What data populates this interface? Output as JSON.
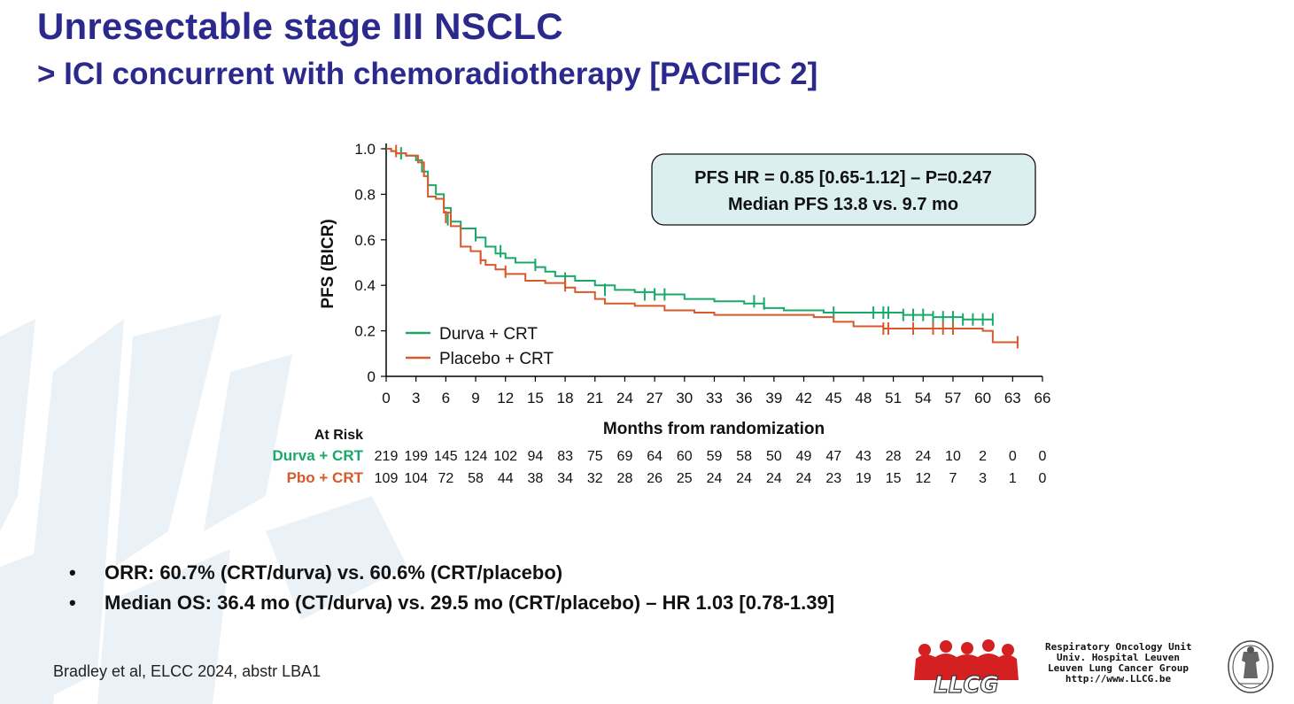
{
  "slide": {
    "title": "Unresectable stage III NSCLC",
    "subtitle": "> ICI concurrent with chemoradiotherapy [PACIFIC 2]"
  },
  "bullets": [
    "ORR: 60.7% (CRT/durva) vs. 60.6% (CRT/placebo)",
    "Median OS: 36.4 mo (CT/durva) vs. 29.5 mo (CRT/placebo) – HR 1.03 [0.78-1.39]"
  ],
  "bullet_symbol": "•",
  "citation": "Bradley et al, ELCC 2024, abstr LBA1",
  "footer": {
    "org_lines": [
      "Respiratory Oncology Unit",
      "Univ. Hospital Leuven",
      "Leuven Lung Cancer Group",
      "http://www.LLCG.be"
    ],
    "logo_text": "LLCG",
    "logo_icon": "llcg-logo",
    "seal_icon": "university-seal"
  },
  "colors": {
    "title": "#2b2a8c",
    "durva": "#1aa86a",
    "placebo": "#d65a2a",
    "annotation_bg": "#dbeff0"
  },
  "chart_data": {
    "type": "line",
    "title": "",
    "xlabel": "Months from randomization",
    "ylabel": "PFS (BICR)",
    "xlim": [
      0,
      66
    ],
    "ylim": [
      0,
      1.0
    ],
    "x_ticks": [
      0,
      3,
      6,
      9,
      12,
      15,
      18,
      21,
      24,
      27,
      30,
      33,
      36,
      39,
      42,
      45,
      48,
      51,
      54,
      57,
      60,
      63,
      66
    ],
    "y_ticks": [
      {
        "value": 0,
        "label": "0"
      },
      {
        "value": 0.2,
        "label": "0.2"
      },
      {
        "value": 0.4,
        "label": "0.4"
      },
      {
        "value": 0.6,
        "label": "0.6"
      },
      {
        "value": 0.8,
        "label": "0.8"
      },
      {
        "value": 1.0,
        "label": "1.0"
      }
    ],
    "annotation": [
      "PFS HR = 0.85 [0.65-1.12] – P=0.247",
      "Median PFS 13.8 vs. 9.7 mo"
    ],
    "legend_position": "bottom-left",
    "series": [
      {
        "name": "Durva + CRT",
        "color": "#1aa86a",
        "points": [
          [
            0,
            1.0
          ],
          [
            0.5,
            0.99
          ],
          [
            1,
            0.98
          ],
          [
            2,
            0.97
          ],
          [
            3,
            0.95
          ],
          [
            3.6,
            0.9
          ],
          [
            4.2,
            0.84
          ],
          [
            5,
            0.8
          ],
          [
            5.8,
            0.74
          ],
          [
            6.5,
            0.68
          ],
          [
            7.5,
            0.65
          ],
          [
            9,
            0.61
          ],
          [
            10,
            0.57
          ],
          [
            11,
            0.54
          ],
          [
            12,
            0.52
          ],
          [
            13,
            0.5
          ],
          [
            15,
            0.48
          ],
          [
            16,
            0.46
          ],
          [
            17,
            0.44
          ],
          [
            19,
            0.42
          ],
          [
            21,
            0.4
          ],
          [
            23,
            0.38
          ],
          [
            25,
            0.37
          ],
          [
            27,
            0.36
          ],
          [
            30,
            0.34
          ],
          [
            33,
            0.33
          ],
          [
            36,
            0.32
          ],
          [
            38,
            0.3
          ],
          [
            40,
            0.29
          ],
          [
            44,
            0.28
          ],
          [
            48,
            0.28
          ],
          [
            52,
            0.27
          ],
          [
            55,
            0.26
          ],
          [
            58,
            0.25
          ],
          [
            61,
            0.25
          ]
        ],
        "censor_marks": [
          [
            1.5,
            0.98
          ],
          [
            6.2,
            0.69
          ],
          [
            9,
            0.62
          ],
          [
            11.5,
            0.55
          ],
          [
            15,
            0.49
          ],
          [
            18,
            0.43
          ],
          [
            22,
            0.38
          ],
          [
            26,
            0.36
          ],
          [
            27,
            0.36
          ],
          [
            28,
            0.36
          ],
          [
            37,
            0.33
          ],
          [
            38,
            0.32
          ],
          [
            45,
            0.28
          ],
          [
            49,
            0.28
          ],
          [
            50,
            0.28
          ],
          [
            50.5,
            0.28
          ],
          [
            52,
            0.27
          ],
          [
            53,
            0.27
          ],
          [
            54,
            0.27
          ],
          [
            55,
            0.26
          ],
          [
            56,
            0.26
          ],
          [
            57,
            0.26
          ],
          [
            58,
            0.25
          ],
          [
            59,
            0.25
          ],
          [
            60,
            0.25
          ],
          [
            61,
            0.25
          ]
        ]
      },
      {
        "name": "Placebo + CRT",
        "color": "#d65a2a",
        "points": [
          [
            0,
            1.0
          ],
          [
            0.5,
            0.99
          ],
          [
            1,
            0.98
          ],
          [
            2,
            0.97
          ],
          [
            3.2,
            0.94
          ],
          [
            3.8,
            0.88
          ],
          [
            4.2,
            0.79
          ],
          [
            5,
            0.78
          ],
          [
            5.8,
            0.72
          ],
          [
            6.5,
            0.66
          ],
          [
            7.5,
            0.57
          ],
          [
            8.5,
            0.55
          ],
          [
            9.5,
            0.51
          ],
          [
            10,
            0.49
          ],
          [
            11,
            0.47
          ],
          [
            12,
            0.45
          ],
          [
            14,
            0.42
          ],
          [
            16,
            0.41
          ],
          [
            18,
            0.39
          ],
          [
            19,
            0.37
          ],
          [
            21,
            0.34
          ],
          [
            22,
            0.32
          ],
          [
            25,
            0.31
          ],
          [
            28,
            0.29
          ],
          [
            31,
            0.28
          ],
          [
            33,
            0.27
          ],
          [
            36,
            0.27
          ],
          [
            39,
            0.27
          ],
          [
            43,
            0.26
          ],
          [
            45,
            0.24
          ],
          [
            47,
            0.22
          ],
          [
            50,
            0.21
          ],
          [
            54,
            0.21
          ],
          [
            57,
            0.21
          ],
          [
            60,
            0.2
          ],
          [
            61,
            0.15
          ],
          [
            63.5,
            0.15
          ]
        ],
        "censor_marks": [
          [
            1,
            0.99
          ],
          [
            6,
            0.7
          ],
          [
            9.5,
            0.52
          ],
          [
            12,
            0.46
          ],
          [
            18,
            0.4
          ],
          [
            50,
            0.21
          ],
          [
            50.5,
            0.21
          ],
          [
            53,
            0.21
          ],
          [
            55,
            0.21
          ],
          [
            56,
            0.21
          ],
          [
            57,
            0.21
          ],
          [
            63.5,
            0.15
          ]
        ]
      }
    ],
    "at_risk": {
      "label": "At Risk",
      "rows": [
        {
          "name": "Durva + CRT",
          "color": "#1aa86a",
          "values": [
            "219",
            "199",
            "145",
            "124",
            "102",
            "94",
            "83",
            "75",
            "69",
            "64",
            "60",
            "59",
            "58",
            "50",
            "49",
            "47",
            "43",
            "28",
            "24",
            "10",
            "2",
            "0",
            "0"
          ]
        },
        {
          "name": "Pbo + CRT",
          "color": "#d65a2a",
          "values": [
            "109",
            "104",
            "72",
            "58",
            "44",
            "38",
            "34",
            "32",
            "28",
            "26",
            "25",
            "24",
            "24",
            "24",
            "24",
            "23",
            "19",
            "15",
            "12",
            "7",
            "3",
            "1",
            "0"
          ]
        }
      ]
    }
  }
}
